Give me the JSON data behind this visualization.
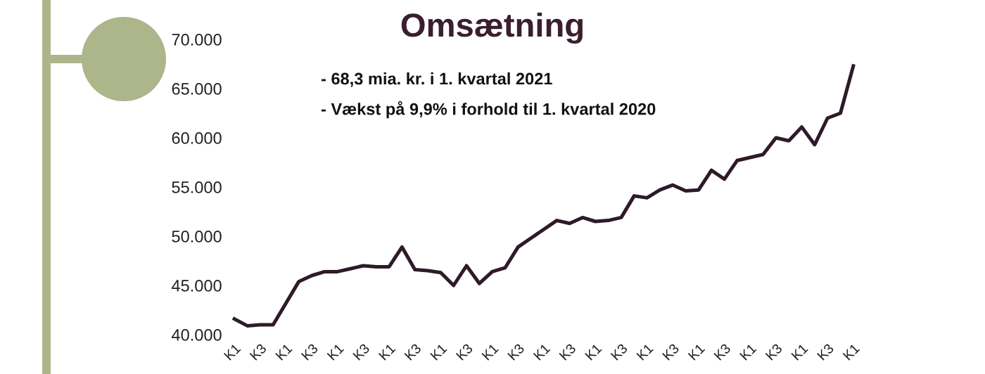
{
  "chart_data": {
    "type": "line",
    "title": "Omsætning",
    "annotations": [
      "- 68,3 mia. kr. i 1. kvartal 2021",
      "- Vækst på 9,9% i forhold til 1. kvartal 2020"
    ],
    "categories": [
      "K1",
      null,
      "K3",
      null,
      "K1",
      null,
      "K3",
      null,
      "K1",
      null,
      "K3",
      null,
      "K1",
      null,
      "K3",
      null,
      "K1",
      null,
      "K3",
      null,
      "K1",
      null,
      "K3",
      null,
      "K1",
      null,
      "K3",
      null,
      "K1",
      null,
      "K3",
      null,
      "K1",
      null,
      "K3",
      null,
      "K1",
      null,
      "K3",
      null,
      "K1",
      null,
      "K3",
      null,
      "K1",
      null,
      "K3",
      null,
      "K1"
    ],
    "series": [
      {
        "color": "#2e1a28",
        "values": [
          41600,
          40900,
          41000,
          41000,
          43200,
          45400,
          46000,
          46400,
          46400,
          46700,
          47000,
          46900,
          46900,
          48900,
          46600,
          46500,
          46300,
          45000,
          47000,
          45200,
          46400,
          46800,
          48900,
          49800,
          50700,
          51600,
          51300,
          51900,
          51500,
          51600,
          51900,
          54100,
          53900,
          54700,
          55200,
          54600,
          54700,
          56700,
          55800,
          57700,
          58000,
          58300,
          60000,
          59700,
          61100,
          59300,
          62000,
          62500,
          67300
        ]
      }
    ],
    "ylim": [
      40000,
      70000
    ],
    "yticks": [
      {
        "value": 40000,
        "label": "40.000"
      },
      {
        "value": 45000,
        "label": "45.000"
      },
      {
        "value": 50000,
        "label": "50.000"
      },
      {
        "value": 55000,
        "label": "55.000"
      },
      {
        "value": 60000,
        "label": "60.000"
      },
      {
        "value": 65000,
        "label": "65.000"
      },
      {
        "value": 70000,
        "label": "70.000"
      }
    ],
    "marker": "none",
    "line_style": "solid"
  }
}
